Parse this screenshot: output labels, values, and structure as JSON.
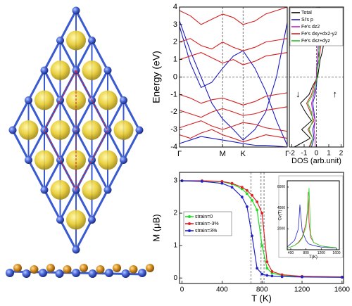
{
  "chart_data": [
    {
      "type": "line",
      "ylabel": "Energy (eV)",
      "xlim": [
        0,
        1
      ],
      "xticks": [
        {
          "value": 0,
          "label": "Γ"
        },
        {
          "value": 0.4,
          "label": "M"
        },
        {
          "value": 0.59,
          "label": "K"
        },
        {
          "value": 1,
          "label": "Γ"
        }
      ],
      "ylim": [
        -4,
        4
      ],
      "yticks": [
        -4,
        -3,
        -2,
        -1,
        0,
        1,
        2,
        3,
        4
      ],
      "ref_x": [
        0.4,
        0.59
      ],
      "ref_y": [
        0
      ],
      "x": [
        0,
        0.1,
        0.2,
        0.3,
        0.4,
        0.5,
        0.59,
        0.7,
        0.8,
        0.9,
        1
      ],
      "series": [
        {
          "color": "#1c1cc4",
          "values": [
            3.2,
            1.5,
            0.0,
            -1.5,
            -2.4,
            -3.0,
            -3.6,
            -3.0,
            -2.0,
            0.0,
            3.1
          ]
        },
        {
          "color": "#1c1cc4",
          "values": [
            2.9,
            0.8,
            -0.6,
            -0.3,
            0.5,
            1.2,
            1.5,
            0.5,
            -0.8,
            -2.5,
            -3.9
          ]
        },
        {
          "color": "#1c1cc4",
          "values": [
            -3.8,
            -3.6,
            -3.4,
            -3.5,
            -3.6,
            -3.7,
            -3.8,
            -3.9,
            -3.9,
            -3.95,
            -4.0
          ]
        },
        {
          "color": "#d42020",
          "values": [
            3.8,
            3.5,
            3.0,
            3.3,
            3.6,
            3.4,
            3.0,
            3.2,
            3.6,
            3.8,
            4.0
          ]
        },
        {
          "color": "#d42020",
          "values": [
            2.0,
            2.2,
            1.8,
            1.6,
            2.0,
            1.7,
            1.5,
            1.7,
            2.0,
            2.1,
            2.2
          ]
        },
        {
          "color": "#d42020",
          "values": [
            1.0,
            1.2,
            1.4,
            1.1,
            0.8,
            1.0,
            0.7,
            0.9,
            1.2,
            1.3,
            1.4
          ]
        },
        {
          "color": "#d42020",
          "values": [
            -1.0,
            -1.2,
            -1.5,
            -1.3,
            -1.2,
            -1.4,
            -1.6,
            -1.4,
            -1.1,
            -1.0,
            -0.9
          ]
        },
        {
          "color": "#d42020",
          "values": [
            -1.9,
            -2.1,
            -2.3,
            -2.0,
            -1.8,
            -2.0,
            -2.2,
            -2.1,
            -1.9,
            -1.8,
            -1.7
          ]
        },
        {
          "color": "#d42020",
          "values": [
            -2.9,
            -2.7,
            -2.5,
            -2.8,
            -3.0,
            -2.8,
            -2.6,
            -2.7,
            -2.9,
            -3.0,
            -3.1
          ]
        },
        {
          "color": "#d42020",
          "values": [
            -3.3,
            -3.5,
            -3.2,
            -3.0,
            -3.3,
            -3.5,
            -3.7,
            -3.5,
            -3.3,
            -3.4,
            -3.5
          ]
        }
      ]
    },
    {
      "type": "line",
      "orientation": "horizontal",
      "xlabel": "DOS (arb.unit)",
      "xlim": [
        -2.2,
        2.2
      ],
      "xticks": [
        -2,
        -1,
        0,
        1,
        2
      ],
      "ylim": [
        -4,
        4
      ],
      "ref_x": [
        0
      ],
      "ref_y": [
        0
      ],
      "legend": "upper right",
      "y": [
        -4,
        -3.5,
        -3,
        -2.5,
        -2,
        -1.5,
        -1,
        -0.5,
        0,
        0.5,
        1,
        1.5,
        2,
        2.5,
        3,
        3.5,
        4
      ],
      "series": [
        {
          "name": "Total",
          "color": "#000000",
          "values": [
            -1.8,
            -0.5,
            -1.2,
            -0.4,
            -0.9,
            -1.3,
            -0.6,
            -0.3,
            0.1,
            0.2,
            0.3,
            0.5,
            0.6,
            0.4,
            0.8,
            -0.5,
            0.3
          ]
        },
        {
          "name": "Si's p",
          "color": "#1c1cc4",
          "values": [
            -0.4,
            -0.2,
            -0.3,
            -0.1,
            -0.2,
            -0.3,
            -0.1,
            0.0,
            0.05,
            0.1,
            0.1,
            0.2,
            0.2,
            0.1,
            0.3,
            -0.1,
            0.1
          ]
        },
        {
          "name": "Fe's dz2",
          "color": "#c020c0",
          "values": [
            -0.1,
            -0.1,
            -0.2,
            -0.1,
            -0.3,
            -0.4,
            -0.2,
            -0.1,
            0.0,
            0.0,
            0.1,
            0.1,
            0.1,
            0.1,
            0.2,
            -0.1,
            0.0
          ]
        },
        {
          "name": "Fe's dxy+dx2-y2",
          "color": "#d42020",
          "values": [
            -0.6,
            -0.3,
            -0.7,
            -0.2,
            -0.5,
            -0.8,
            -0.4,
            -0.2,
            0.05,
            0.1,
            0.2,
            0.3,
            0.4,
            0.2,
            0.5,
            -0.3,
            0.2
          ]
        },
        {
          "name": "Fe's dxz+dyz",
          "color": "#20c020",
          "values": [
            -0.5,
            -0.3,
            -0.6,
            -0.3,
            -0.4,
            -0.7,
            -0.3,
            -0.1,
            0.05,
            0.1,
            0.2,
            0.2,
            0.3,
            0.2,
            0.4,
            -0.2,
            0.1
          ]
        }
      ],
      "annotations": [
        {
          "text": "↓",
          "x": -1.5,
          "y": -1
        },
        {
          "text": "↑",
          "x": 1.5,
          "y": -1
        }
      ]
    },
    {
      "type": "line",
      "xlabel": "T (K)",
      "ylabel": "M (μB)",
      "xlim": [
        -25,
        1615
      ],
      "xticks": [
        0,
        400,
        800,
        1200,
        1600
      ],
      "ylim": [
        -0.17,
        3.26
      ],
      "yticks": [
        0,
        1,
        2,
        3
      ],
      "ref_x": [
        690,
        790,
        820
      ],
      "markers": true,
      "legend": "center left",
      "x": [
        0,
        200,
        400,
        500,
        600,
        650,
        700,
        750,
        800,
        850,
        900,
        1000,
        1200,
        1600
      ],
      "series": [
        {
          "name": "strain=0",
          "color": "#22dd22",
          "values": [
            3,
            3,
            2.97,
            2.9,
            2.75,
            2.6,
            2.4,
            2.1,
            1.0,
            0.3,
            0.15,
            0.08,
            0.05,
            0.03
          ]
        },
        {
          "name": "strain=-3%",
          "color": "#dd2222",
          "values": [
            3,
            3,
            2.98,
            2.92,
            2.8,
            2.7,
            2.55,
            2.35,
            2.0,
            0.5,
            0.2,
            0.1,
            0.05,
            0.03
          ]
        },
        {
          "name": "strain=3%",
          "color": "#2222cc",
          "values": [
            3,
            2.98,
            2.92,
            2.8,
            2.5,
            2.2,
            1.3,
            0.3,
            0.12,
            0.08,
            0.06,
            0.04,
            0.03,
            0.02
          ]
        }
      ]
    },
    {
      "type": "line",
      "inset": true,
      "xlabel": "T(K)",
      "ylabel": "Cv(T)",
      "xlim": [
        308,
        1674
      ],
      "xticks": [
        400,
        800,
        1200,
        1600
      ],
      "ylim": [
        0,
        6600
      ],
      "yticks": [
        2000,
        4000,
        6000
      ],
      "x": [
        320,
        500,
        600,
        640,
        700,
        800,
        840,
        860,
        880,
        920,
        1000,
        1200,
        1600
      ],
      "series": [
        {
          "color": "#2222cc",
          "values": [
            300,
            900,
            2000,
            4300,
            1800,
            900,
            700,
            600,
            550,
            500,
            400,
            250,
            150
          ]
        },
        {
          "color": "#dd2222",
          "values": [
            150,
            400,
            700,
            900,
            1200,
            2500,
            3800,
            5500,
            2600,
            1200,
            700,
            350,
            180
          ]
        },
        {
          "color": "#22dd22",
          "values": [
            150,
            400,
            650,
            800,
            1100,
            2200,
            3500,
            4800,
            5900,
            1500,
            700,
            350,
            180
          ]
        }
      ]
    }
  ]
}
